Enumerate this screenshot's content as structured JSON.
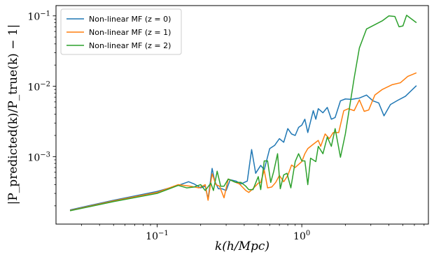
{
  "chart_data": {
    "type": "line",
    "x_scale": "log",
    "y_scale": "log",
    "xlabel": "k(h/Mpc)",
    "ylabel": "|P_predicted(k)/P_true(k) − 1|",
    "xlim": [
      0.02,
      7.5
    ],
    "ylim": [
      0.00011,
      0.14
    ],
    "legend_position": "upper-left",
    "grid": false,
    "x_ticks": [
      {
        "value": 0.1,
        "base": "10",
        "exp": "−1"
      },
      {
        "value": 1,
        "base": "10",
        "exp": "0"
      }
    ],
    "y_ticks": [
      {
        "value": 0.001,
        "base": "10",
        "exp": "−3"
      },
      {
        "value": 0.01,
        "base": "10",
        "exp": "−2"
      },
      {
        "value": 0.1,
        "base": "10",
        "exp": "−1"
      }
    ],
    "series": [
      {
        "name": "Non-linear MF (z = 0)",
        "color": "#1f77b4",
        "points": [
          [
            0.025,
            0.000175
          ],
          [
            0.05,
            0.00024
          ],
          [
            0.1,
            0.00032
          ],
          [
            0.14,
            0.00039
          ],
          [
            0.165,
            0.00044
          ],
          [
            0.18,
            0.00041
          ],
          [
            0.2,
            0.00036
          ],
          [
            0.215,
            0.00038
          ],
          [
            0.225,
            0.00025
          ],
          [
            0.24,
            0.00068
          ],
          [
            0.25,
            0.00045
          ],
          [
            0.265,
            0.00035
          ],
          [
            0.28,
            0.00035
          ],
          [
            0.3,
            0.00033
          ],
          [
            0.32,
            0.00047
          ],
          [
            0.35,
            0.00045
          ],
          [
            0.38,
            0.00041
          ],
          [
            0.42,
            0.00045
          ],
          [
            0.45,
            0.00126
          ],
          [
            0.48,
            0.00058
          ],
          [
            0.52,
            0.00075
          ],
          [
            0.55,
            0.00065
          ],
          [
            0.6,
            0.0013
          ],
          [
            0.65,
            0.00145
          ],
          [
            0.7,
            0.0018
          ],
          [
            0.75,
            0.0016
          ],
          [
            0.8,
            0.0025
          ],
          [
            0.85,
            0.0021
          ],
          [
            0.9,
            0.002
          ],
          [
            0.95,
            0.0026
          ],
          [
            1.0,
            0.0028
          ],
          [
            1.05,
            0.0034
          ],
          [
            1.1,
            0.0022
          ],
          [
            1.2,
            0.0045
          ],
          [
            1.25,
            0.0034
          ],
          [
            1.3,
            0.0048
          ],
          [
            1.4,
            0.0042
          ],
          [
            1.5,
            0.005
          ],
          [
            1.6,
            0.0034
          ],
          [
            1.7,
            0.0036
          ],
          [
            1.85,
            0.0062
          ],
          [
            2.0,
            0.0066
          ],
          [
            2.2,
            0.0065
          ],
          [
            2.5,
            0.0068
          ],
          [
            2.8,
            0.0075
          ],
          [
            3.1,
            0.0062
          ],
          [
            3.4,
            0.0058
          ],
          [
            3.7,
            0.0038
          ],
          [
            4.1,
            0.0055
          ],
          [
            4.6,
            0.0063
          ],
          [
            5.2,
            0.0072
          ],
          [
            6.2,
            0.0102
          ]
        ]
      },
      {
        "name": "Non-linear MF (z = 1)",
        "color": "#ff7f0e",
        "points": [
          [
            0.025,
            0.000172
          ],
          [
            0.05,
            0.000235
          ],
          [
            0.1,
            0.00031
          ],
          [
            0.14,
            0.0004
          ],
          [
            0.17,
            0.00038
          ],
          [
            0.195,
            0.00036
          ],
          [
            0.215,
            0.0004
          ],
          [
            0.225,
            0.00024
          ],
          [
            0.24,
            0.00057
          ],
          [
            0.255,
            0.0004
          ],
          [
            0.27,
            0.00038
          ],
          [
            0.29,
            0.00026
          ],
          [
            0.31,
            0.00048
          ],
          [
            0.34,
            0.00044
          ],
          [
            0.37,
            0.00041
          ],
          [
            0.41,
            0.00033
          ],
          [
            0.43,
            0.00031
          ],
          [
            0.46,
            0.00035
          ],
          [
            0.5,
            0.00042
          ],
          [
            0.52,
            0.00043
          ],
          [
            0.55,
            0.00064
          ],
          [
            0.58,
            0.00036
          ],
          [
            0.62,
            0.00037
          ],
          [
            0.66,
            0.00043
          ],
          [
            0.7,
            0.00054
          ],
          [
            0.75,
            0.00044
          ],
          [
            0.8,
            0.00054
          ],
          [
            0.85,
            0.00076
          ],
          [
            0.9,
            0.0007
          ],
          [
            1.0,
            0.00085
          ],
          [
            1.05,
            0.0011
          ],
          [
            1.1,
            0.0013
          ],
          [
            1.2,
            0.0015
          ],
          [
            1.3,
            0.0017
          ],
          [
            1.35,
            0.0014
          ],
          [
            1.45,
            0.0021
          ],
          [
            1.55,
            0.0018
          ],
          [
            1.65,
            0.0022
          ],
          [
            1.8,
            0.0022
          ],
          [
            1.95,
            0.0045
          ],
          [
            2.1,
            0.0048
          ],
          [
            2.3,
            0.0045
          ],
          [
            2.5,
            0.0064
          ],
          [
            2.7,
            0.0044
          ],
          [
            2.9,
            0.0046
          ],
          [
            3.2,
            0.0075
          ],
          [
            3.6,
            0.009
          ],
          [
            4.2,
            0.0105
          ],
          [
            4.8,
            0.0112
          ],
          [
            5.4,
            0.0138
          ],
          [
            6.2,
            0.0155
          ]
        ]
      },
      {
        "name": "Non-linear MF (z = 2)",
        "color": "#2ca02c",
        "points": [
          [
            0.025,
            0.00017
          ],
          [
            0.05,
            0.00023
          ],
          [
            0.1,
            0.0003
          ],
          [
            0.14,
            0.00039
          ],
          [
            0.16,
            0.00036
          ],
          [
            0.18,
            0.00037
          ],
          [
            0.2,
            0.0004
          ],
          [
            0.215,
            0.00033
          ],
          [
            0.235,
            0.00042
          ],
          [
            0.245,
            0.00033
          ],
          [
            0.26,
            0.00062
          ],
          [
            0.275,
            0.00038
          ],
          [
            0.29,
            0.00038
          ],
          [
            0.31,
            0.00048
          ],
          [
            0.35,
            0.00043
          ],
          [
            0.38,
            0.00043
          ],
          [
            0.41,
            0.00038
          ],
          [
            0.43,
            0.00034
          ],
          [
            0.46,
            0.00034
          ],
          [
            0.5,
            0.00052
          ],
          [
            0.52,
            0.00034
          ],
          [
            0.55,
            0.00087
          ],
          [
            0.58,
            0.00087
          ],
          [
            0.61,
            0.00043
          ],
          [
            0.64,
            0.00062
          ],
          [
            0.68,
            0.0011
          ],
          [
            0.71,
            0.00035
          ],
          [
            0.75,
            0.00055
          ],
          [
            0.79,
            0.00058
          ],
          [
            0.84,
            0.00036
          ],
          [
            0.9,
            0.00085
          ],
          [
            0.95,
            0.0011
          ],
          [
            1.0,
            0.00087
          ],
          [
            1.05,
            0.00087
          ],
          [
            1.1,
            0.0004
          ],
          [
            1.15,
            0.00095
          ],
          [
            1.25,
            0.00085
          ],
          [
            1.3,
            0.0014
          ],
          [
            1.4,
            0.0011
          ],
          [
            1.5,
            0.0019
          ],
          [
            1.6,
            0.0014
          ],
          [
            1.7,
            0.0025
          ],
          [
            1.85,
            0.00098
          ],
          [
            2.0,
            0.0021
          ],
          [
            2.3,
            0.013
          ],
          [
            2.5,
            0.035
          ],
          [
            2.8,
            0.065
          ],
          [
            3.2,
            0.075
          ],
          [
            3.6,
            0.085
          ],
          [
            4.0,
            0.1
          ],
          [
            4.4,
            0.098
          ],
          [
            4.7,
            0.07
          ],
          [
            5.0,
            0.072
          ],
          [
            5.3,
            0.102
          ],
          [
            6.2,
            0.08
          ]
        ]
      }
    ]
  }
}
